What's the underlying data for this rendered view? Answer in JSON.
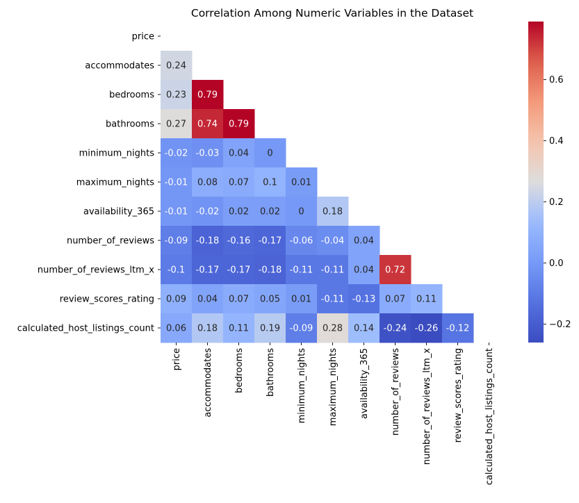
{
  "chart_data": {
    "type": "heatmap",
    "title": "Correlation Among Numeric Variables in the Dataset",
    "variables": [
      "price",
      "accommodates",
      "bedrooms",
      "bathrooms",
      "minimum_nights",
      "maximum_nights",
      "availability_365",
      "number_of_reviews",
      "number_of_reviews_ltm_x",
      "review_scores_rating",
      "calculated_host_listings_count"
    ],
    "mask": "upper triangle including diagonal",
    "values": [
      [],
      [
        0.24
      ],
      [
        0.23,
        0.79
      ],
      [
        0.27,
        0.74,
        0.79
      ],
      [
        -0.02,
        -0.03,
        0.04,
        0
      ],
      [
        -0.01,
        0.08,
        0.07,
        0.1,
        0.01
      ],
      [
        -0.01,
        -0.02,
        0.02,
        0.02,
        0,
        0.18
      ],
      [
        -0.09,
        -0.18,
        -0.16,
        -0.17,
        -0.06,
        -0.04,
        0.04
      ],
      [
        -0.1,
        -0.17,
        -0.17,
        -0.18,
        -0.11,
        -0.11,
        0.04,
        0.72
      ],
      [
        0.09,
        0.04,
        0.07,
        0.05,
        0.01,
        -0.11,
        -0.13,
        0.07,
        0.11
      ],
      [
        0.06,
        0.18,
        0.11,
        0.19,
        -0.09,
        0.28,
        0.14,
        -0.24,
        -0.26,
        -0.12
      ]
    ],
    "colormap": "coolwarm",
    "colorbar": {
      "min": -0.26,
      "max": 0.79,
      "ticks": [
        -0.2,
        0.0,
        0.2,
        0.4,
        0.6
      ],
      "tick_labels": [
        "−0.2",
        "0.0",
        "0.2",
        "0.4",
        "0.6"
      ]
    }
  }
}
